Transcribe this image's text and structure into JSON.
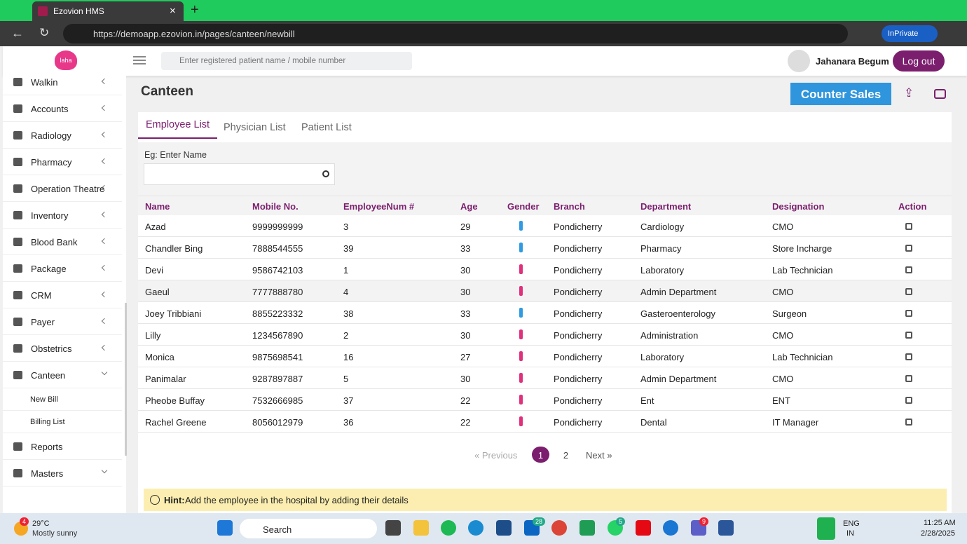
{
  "browser": {
    "tab_title": "Ezovion HMS",
    "url": "https://demoapp.ezovion.in/pages/canteen/newbill",
    "inprivate": "InPrivate"
  },
  "header": {
    "logo": "laha",
    "search_placeholder": "Enter registered patient name / mobile number",
    "user": "Jahanara Begum",
    "logout": "Log out"
  },
  "sidebar": {
    "items": [
      "Walkin",
      "Accounts",
      "Radiology",
      "Pharmacy",
      "Operation Theatre",
      "Inventory",
      "Blood Bank",
      "Package",
      "CRM",
      "Payer",
      "Obstetrics",
      "Canteen"
    ],
    "sub_items": [
      "New Bill",
      "Billing List"
    ],
    "bottom_items": [
      "Reports",
      "Masters"
    ]
  },
  "page": {
    "title": "Canteen",
    "counter_sales": "Counter Sales"
  },
  "tabs": [
    "Employee List",
    "Physician List",
    "Patient List"
  ],
  "search_label": "Eg: Enter Name",
  "table": {
    "columns": [
      "Name",
      "Mobile No.",
      "EmployeeNum #",
      "Age",
      "Gender",
      "Branch",
      "Department",
      "Designation",
      "Action"
    ],
    "rows": [
      [
        "Azad",
        "9999999999",
        "3",
        "29",
        "Pondicherry",
        "Cardiology",
        "CMO"
      ],
      [
        "Chandler Bing",
        "7888544555",
        "39",
        "33",
        "Pondicherry",
        "Pharmacy",
        "Store Incharge"
      ],
      [
        "Devi",
        "9586742103",
        "1",
        "30",
        "Pondicherry",
        "Laboratory",
        "Lab Technician"
      ],
      [
        "Gaeul",
        "7777888780",
        "4",
        "30",
        "Pondicherry",
        "Admin Department",
        "CMO"
      ],
      [
        "Joey Tribbiani",
        "8855223332",
        "38",
        "33",
        "Pondicherry",
        "Gasteroenterology",
        "Surgeon"
      ],
      [
        "Lilly",
        "1234567890",
        "2",
        "30",
        "Pondicherry",
        "Administration",
        "CMO"
      ],
      [
        "Monica",
        "9875698541",
        "16",
        "27",
        "Pondicherry",
        "Laboratory",
        "Lab Technician"
      ],
      [
        "Panimalar",
        "9287897887",
        "5",
        "30",
        "Pondicherry",
        "Admin Department",
        "CMO"
      ],
      [
        "Pheobe Buffay",
        "7532666985",
        "37",
        "22",
        "Pondicherry",
        "Ent",
        "ENT"
      ],
      [
        "Rachel Greene",
        "8056012979",
        "36",
        "22",
        "Pondicherry",
        "Dental",
        "IT Manager"
      ]
    ],
    "gender_icon_colors": [
      "#2f9be0",
      "#2f9be0",
      "#e0307c",
      "#e0307c",
      "#2f9be0",
      "#e0307c",
      "#e0307c",
      "#e0307c",
      "#e0307c",
      "#e0307c"
    ]
  },
  "pagination": {
    "previous": "« Previous",
    "pages": [
      "1",
      "2"
    ],
    "next": "Next »"
  },
  "hint": {
    "label": "Hint:",
    "text": "Add the employee in the hospital by adding their details"
  },
  "taskbar": {
    "weather_badge": "4",
    "temperature": "29°C",
    "weather": "Mostly sunny",
    "search": "Search",
    "badges": [
      "28",
      "5",
      "9"
    ],
    "lang": "ENG",
    "region": "IN",
    "time": "11:25 AM",
    "date": "2/28/2025"
  }
}
